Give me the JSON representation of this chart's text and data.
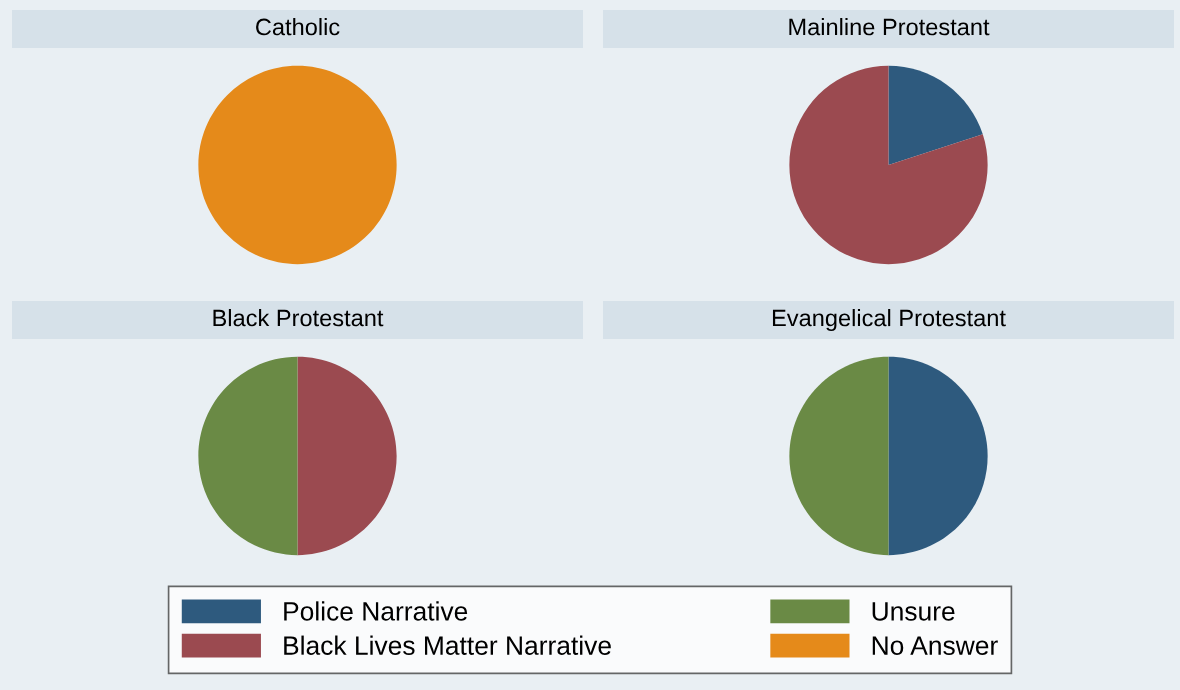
{
  "chart_data": [
    {
      "type": "pie",
      "title": "Catholic",
      "categories": [
        null,
        null,
        null,
        null
      ],
      "values": [
        0,
        0,
        0,
        100
      ],
      "colors": [
        "#2e5a7e",
        "#9b4a50",
        "#6a8a45",
        "#e58a1a"
      ]
    },
    {
      "type": "pie",
      "title": "Mainline Protestant",
      "categories": [
        null,
        null,
        null,
        null
      ],
      "values": [
        20,
        80,
        0,
        0
      ],
      "colors": [
        "#2e5a7e",
        "#9b4a50",
        "#6a8a45",
        "#e58a1a"
      ]
    },
    {
      "type": "pie",
      "title": "Black Protestant",
      "categories": [
        null,
        null,
        null,
        null
      ],
      "values": [
        0,
        50,
        50,
        0
      ],
      "colors": [
        "#2e5a7e",
        "#9b4a50",
        "#6a8a45",
        "#e58a1a"
      ]
    },
    {
      "type": "pie",
      "title": "Evangelical Protestant",
      "categories": [
        "Police Narrative",
        "Black Lives Matter Narrative",
        "Unsure",
        "No Answer"
      ],
      "values": [
        50,
        0,
        50,
        0
      ],
      "colors": [
        "#2e5a7e",
        "#9b4a50",
        "#6a8a45",
        "#e58a1a"
      ],
      "legend": "bottom"
    }
  ]
}
